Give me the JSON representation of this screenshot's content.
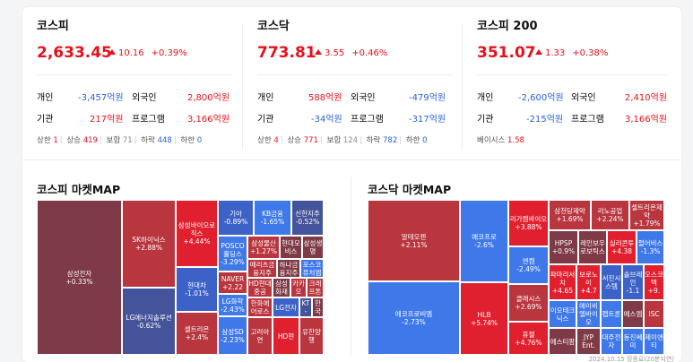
{
  "kospi": {
    "name": "코스피",
    "value": "2,633.45",
    "change": "10.16",
    "pct": "+0.39%",
    "individual_label": "개인",
    "individual": "-3,457억원",
    "foreign_label": "외국인",
    "foreign": "2,800억원",
    "inst_label": "기관",
    "inst": "217억원",
    "program_label": "프로그램",
    "program": "3,166억원",
    "b_uplimit_label": "상한",
    "b_uplimit": "1",
    "b_up_label": "상승",
    "b_up": "419",
    "b_flat_label": "보합",
    "b_flat": "71",
    "b_down_label": "하락",
    "b_down": "448",
    "b_lowlimit_label": "하한",
    "b_lowlimit": "0"
  },
  "kosdaq": {
    "name": "코스닥",
    "value": "773.81",
    "change": "3.55",
    "pct": "+0.46%",
    "individual_label": "개인",
    "individual": "588억원",
    "foreign_label": "외국인",
    "foreign": "-479억원",
    "inst_label": "기관",
    "inst": "-34억원",
    "program_label": "프로그램",
    "program": "-317억원",
    "b_uplimit_label": "상한",
    "b_uplimit": "4",
    "b_up_label": "상승",
    "b_up": "771",
    "b_flat_label": "보합",
    "b_flat": "124",
    "b_down_label": "하락",
    "b_down": "782",
    "b_lowlimit_label": "하한",
    "b_lowlimit": "0"
  },
  "kospi200": {
    "name": "코스피 200",
    "value": "351.07",
    "change": "1.33",
    "pct": "+0.38%",
    "individual_label": "개인",
    "individual": "-2,600억원",
    "foreign_label": "외국인",
    "foreign": "2,410억원",
    "inst_label": "기관",
    "inst": "-215억원",
    "program_label": "프로그램",
    "program": "3,166억원",
    "basis_label": "베이시스",
    "basis": "1.58"
  },
  "colors": {
    "up_strong": "#e0202e",
    "up_mid": "#b9363f",
    "up_light": "#7e3a46",
    "down_strong": "#3f78e8",
    "down_mid": "#3c62c8",
    "down_light": "#44549a",
    "flat": "#6b6b6b"
  },
  "kospi_map": {
    "title": "코스피 마켓MAP",
    "tiles": [
      {
        "name": "삼성전자",
        "chg": "+0.33%",
        "color": "#7e3a46"
      },
      {
        "name": "SK하이닉스",
        "chg": "+2.88%",
        "color": "#b9363f"
      },
      {
        "name": "LG에너지솔루션",
        "chg": "-0.62%",
        "color": "#44549a"
      },
      {
        "name": "삼성바이오로직스",
        "chg": "+4.44%",
        "color": "#e0202e"
      },
      {
        "name": "현대차",
        "chg": "-1.01%",
        "color": "#3c62c8"
      },
      {
        "name": "셀트리온",
        "chg": "+2.4%",
        "color": "#b9363f"
      },
      {
        "name": "기아",
        "chg": "-0.89%",
        "color": "#3c62c8"
      },
      {
        "name": "KB금융",
        "chg": "-1.65%",
        "color": "#3f78e8"
      },
      {
        "name": "신한지주",
        "chg": "-0.52%",
        "color": "#44549a"
      },
      {
        "name": "POSCO홀딩스",
        "chg": "-3.29%",
        "color": "#3f78e8"
      },
      {
        "name": "삼성물산",
        "chg": "+1.27%",
        "color": "#b9363f"
      },
      {
        "name": "현대모비스",
        "chg": "",
        "color": "#7e3a46"
      },
      {
        "name": "삼성생명",
        "chg": "",
        "color": "#7e3a46"
      },
      {
        "name": "NAVER",
        "chg": "+2.22",
        "color": "#b9363f"
      },
      {
        "name": "메리츠금융지주",
        "chg": "",
        "color": "#b9363f"
      },
      {
        "name": "하나금융지주",
        "chg": "",
        "color": "#7e3a46"
      },
      {
        "name": "포스코퓨처엠",
        "chg": "",
        "color": "#3f78e8"
      },
      {
        "name": "LG화학",
        "chg": "-2.43%",
        "color": "#3f78e8"
      },
      {
        "name": "HD현대중공",
        "chg": "",
        "color": "#b9363f"
      },
      {
        "name": "삼성화재",
        "chg": "",
        "color": "#7e3a46"
      },
      {
        "name": "카카오",
        "chg": "",
        "color": "#b9363f"
      },
      {
        "name": "크래프톤",
        "chg": "",
        "color": "#b9363f"
      },
      {
        "name": "한화에어로스",
        "chg": "",
        "color": "#b9363f"
      },
      {
        "name": "LG전자",
        "chg": "",
        "color": "#3c62c8"
      },
      {
        "name": "KT",
        "chg": "-",
        "color": "#44549a"
      },
      {
        "name": "한국",
        "chg": "",
        "color": "#7e3a46"
      },
      {
        "name": "삼성SD",
        "chg": "-2.23%",
        "color": "#3f78e8"
      },
      {
        "name": "고려아연",
        "chg": "",
        "color": "#b9363f"
      },
      {
        "name": "HD현",
        "chg": "",
        "color": "#e0202e"
      },
      {
        "name": "유한양행",
        "chg": "",
        "color": "#b9363f"
      }
    ]
  },
  "kosdaq_map": {
    "title": "코스닥 마켓MAP",
    "tiles": [
      {
        "name": "알테오젠",
        "chg": "+2.11%",
        "color": "#b9363f"
      },
      {
        "name": "에코프로비엠",
        "chg": "-2.73%",
        "color": "#3f78e8"
      },
      {
        "name": "에코프로",
        "chg": "-2.6%",
        "color": "#3f78e8"
      },
      {
        "name": "HLB",
        "chg": "+5.74%",
        "color": "#e0202e"
      },
      {
        "name": "리가켐바이오",
        "chg": "+3.88%",
        "color": "#e0202e"
      },
      {
        "name": "엔켐",
        "chg": "-2.49%",
        "color": "#3f78e8"
      },
      {
        "name": "클래시스",
        "chg": "+2.69%",
        "color": "#b9363f"
      },
      {
        "name": "휴젤",
        "chg": "+4.76%",
        "color": "#e0202e"
      },
      {
        "name": "삼천당제약",
        "chg": "+1.69%",
        "color": "#b9363f"
      },
      {
        "name": "리노공업",
        "chg": "+2.24%",
        "color": "#b9363f"
      },
      {
        "name": "셀트리온제약",
        "chg": "+1.79%",
        "color": "#b9363f"
      },
      {
        "name": "HPSP",
        "chg": "+0.9%",
        "color": "#7e3a46"
      },
      {
        "name": "레인보우로보틱스",
        "chg": "",
        "color": "#7e3a46"
      },
      {
        "name": "실리콘투",
        "chg": "+4.38",
        "color": "#e0202e"
      },
      {
        "name": "펄어비스",
        "chg": "-1.3%",
        "color": "#3f78e8"
      },
      {
        "name": "파마리서치",
        "chg": "+4.65",
        "color": "#e0202e"
      },
      {
        "name": "보로노이",
        "chg": "+4.7",
        "color": "#e0202e"
      },
      {
        "name": "서진시스템",
        "chg": "",
        "color": "#3c62c8"
      },
      {
        "name": "솔브레인",
        "chg": "-1.1",
        "color": "#3c62c8"
      },
      {
        "name": "오스코텍",
        "chg": "+9.",
        "color": "#e0202e"
      },
      {
        "name": "이오테크닉스",
        "chg": "",
        "color": "#3f78e8"
      },
      {
        "name": "에이비엘바이오",
        "chg": "",
        "color": "#3f78e8"
      },
      {
        "name": "펩트론",
        "chg": "",
        "color": "#3f78e8"
      },
      {
        "name": "에스엠",
        "chg": "",
        "color": "#7e3a46"
      },
      {
        "name": "휴젤",
        "chg": "",
        "color": "#3f78e8"
      },
      {
        "name": "에스티팜",
        "chg": "",
        "color": "#7e3a46"
      },
      {
        "name": "JYP Ent.",
        "chg": "",
        "color": "#7e3a46"
      },
      {
        "name": "대주전자",
        "chg": "",
        "color": "#3f78e8"
      },
      {
        "name": "동진쎄미",
        "chg": "",
        "color": "#3f78e8"
      },
      {
        "name": "제이앤티",
        "chg": "",
        "color": "#3f78e8"
      },
      {
        "name": "ISC",
        "chg": "",
        "color": "#b9363f"
      }
    ]
  },
  "footer": "2024.10.15 장종료(20분지연)"
}
